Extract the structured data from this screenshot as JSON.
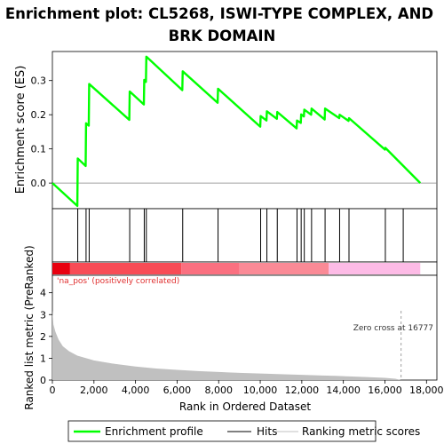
{
  "title_line1": "Enrichment plot: CL5268, ISWI-TYPE COMPLEX, AND",
  "title_line2": "BRK DOMAIN",
  "colors": {
    "profile": "#00ff00",
    "hits": "#000000",
    "metric_fill": "#c0c0c0",
    "pos_label": "#e03030",
    "zero_cross": "#a0a0a0"
  },
  "chart_data": [
    {
      "type": "line",
      "name": "enrichment-profile",
      "ylabel": "Enrichment score (ES)",
      "xlim": [
        0,
        18500
      ],
      "ylim": [
        -0.075,
        0.385
      ],
      "yticks": [
        0.0,
        0.1,
        0.2,
        0.3
      ],
      "ytick_labels": [
        "0.0",
        "0.1",
        "0.2",
        "0.3"
      ],
      "points": [
        [
          0,
          0.0
        ],
        [
          1200,
          -0.067
        ],
        [
          1220,
          0.072
        ],
        [
          1600,
          0.05
        ],
        [
          1620,
          0.175
        ],
        [
          1750,
          0.168
        ],
        [
          1770,
          0.29
        ],
        [
          3700,
          0.185
        ],
        [
          3720,
          0.268
        ],
        [
          4400,
          0.23
        ],
        [
          4420,
          0.302
        ],
        [
          4500,
          0.296
        ],
        [
          4520,
          0.37
        ],
        [
          6250,
          0.272
        ],
        [
          6270,
          0.327
        ],
        [
          7950,
          0.235
        ],
        [
          7970,
          0.276
        ],
        [
          10000,
          0.165
        ],
        [
          10020,
          0.196
        ],
        [
          10300,
          0.183
        ],
        [
          10320,
          0.21
        ],
        [
          10800,
          0.188
        ],
        [
          10820,
          0.208
        ],
        [
          11750,
          0.16
        ],
        [
          11770,
          0.183
        ],
        [
          11950,
          0.176
        ],
        [
          11970,
          0.201
        ],
        [
          12100,
          0.195
        ],
        [
          12120,
          0.215
        ],
        [
          12450,
          0.2
        ],
        [
          12470,
          0.218
        ],
        [
          13100,
          0.186
        ],
        [
          13120,
          0.218
        ],
        [
          13800,
          0.19
        ],
        [
          13820,
          0.2
        ],
        [
          14250,
          0.182
        ],
        [
          14270,
          0.19
        ],
        [
          16000,
          0.098
        ],
        [
          16020,
          0.103
        ],
        [
          17700,
          0.0
        ]
      ]
    },
    {
      "type": "bar",
      "name": "hits",
      "x": [
        1220,
        1620,
        1770,
        3720,
        4420,
        4520,
        6270,
        7970,
        10020,
        10320,
        10820,
        11770,
        11970,
        12120,
        12470,
        13120,
        13820,
        14270,
        16020,
        16880
      ]
    },
    {
      "type": "area",
      "name": "ranking-metric",
      "ylabel": "Ranked list metric (PreRanked)",
      "xlabel": "Rank in Ordered Dataset",
      "xlim": [
        0,
        18500
      ],
      "ylim": [
        0,
        4.8
      ],
      "yticks": [
        0,
        1,
        2,
        3,
        4
      ],
      "ytick_labels": [
        "0",
        "1",
        "2",
        "3",
        "4"
      ],
      "xticks": [
        0,
        2000,
        4000,
        6000,
        8000,
        10000,
        12000,
        14000,
        16000,
        18000
      ],
      "xtick_labels": [
        "0",
        "2,000",
        "4,000",
        "6,000",
        "8,000",
        "10,000",
        "12,000",
        "14,000",
        "16,000",
        "18,000"
      ],
      "points": [
        [
          0,
          3.2
        ],
        [
          50,
          2.55
        ],
        [
          150,
          2.2
        ],
        [
          300,
          1.85
        ],
        [
          500,
          1.55
        ],
        [
          800,
          1.32
        ],
        [
          1200,
          1.12
        ],
        [
          2000,
          0.9
        ],
        [
          3000,
          0.74
        ],
        [
          4000,
          0.62
        ],
        [
          5000,
          0.53
        ],
        [
          6000,
          0.47
        ],
        [
          7000,
          0.41
        ],
        [
          8000,
          0.37
        ],
        [
          9000,
          0.33
        ],
        [
          10000,
          0.3
        ],
        [
          11000,
          0.27
        ],
        [
          12000,
          0.24
        ],
        [
          13000,
          0.21
        ],
        [
          14000,
          0.18
        ],
        [
          15000,
          0.14
        ],
        [
          16000,
          0.1
        ],
        [
          16500,
          0.06
        ],
        [
          16777,
          0.0
        ],
        [
          17700,
          0.0
        ]
      ],
      "annotation": "Zero cross at 16777",
      "zero_cross": 16777
    }
  ],
  "heatmap_band": {
    "label": "'na_pos' (positively correlated)",
    "segments": [
      {
        "from": 0,
        "to": 850,
        "color": "#e8000f"
      },
      {
        "from": 850,
        "to": 6200,
        "color": "#f84c56"
      },
      {
        "from": 6200,
        "to": 9000,
        "color": "#fa7080"
      },
      {
        "from": 9000,
        "to": 13300,
        "color": "#fa8a96"
      },
      {
        "from": 13300,
        "to": 17700,
        "color": "#fdbbe6"
      }
    ]
  },
  "legend": {
    "profile_label": "Enrichment profile",
    "hits_label": "Hits",
    "metric_label": "Ranking metric scores"
  }
}
